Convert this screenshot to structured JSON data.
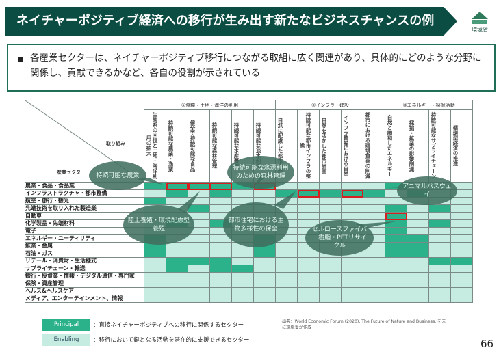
{
  "banner": {
    "title": "ネイチャーポジティブ経済への移行が生み出す新たなビジネスチャンスの例"
  },
  "logo": {
    "text": "環境省"
  },
  "bullet": {
    "text": "各産業セクターは、ネイチャーポジティブ移行につながる取組に広く関連があり、具体的にどのような分野に関係し、貢献できるかなど、各自の役割が示されている"
  },
  "matrix": {
    "corner_top": "取り組み",
    "corner_left": "産業セクタ",
    "groups": [
      {
        "label": "①食糧・土地・海洋の利用",
        "span": 6
      },
      {
        "label": "②インフラ・建設",
        "span": 5
      },
      {
        "label": "③エネルギー・採掘活動",
        "span": 4
      }
    ],
    "columns": [
      "生態系の回復と土地・海洋利用の拡大",
      "持続可能な農業・漁業",
      "健全で持続可能な食品",
      "持続可能な森林管理",
      "持続可能な水産養殖",
      "持続可能な淡水利用",
      "自然に配慮した都市空間",
      "持続可能な都市インフラの整備",
      "自然を活かした都市計画",
      "インフラ整備における自然",
      "都市における環境負荷の削減",
      "自然と調和したエネルギー",
      "採掘・鉱業の影響削減",
      "持続可能なサプライチェーン",
      "循環型経済の推進"
    ],
    "rows": [
      {
        "label": "農業・食品・食品業",
        "cells": "PPPPPPEEEEEPEEE"
      },
      {
        "label": "インフラストラクチャ・都市整備",
        "cells": "EPEPEEPPPPPEPEE"
      },
      {
        "label": "航空・旅行・観光",
        "cells": "PEEEEEEEEEEEEEE"
      },
      {
        "label": "先端技術を取り入れた製造業",
        "cells": "EEPEEEEEEEEPEPE"
      },
      {
        "label": "自動車",
        "cells": "EEEEEEEEEEEPEEE"
      },
      {
        "label": "化学製品・先端材料",
        "cells": "EPEPEEEEEEEPEPE"
      },
      {
        "label": "電子",
        "cells": "EEEEEEEEEEEPEEE"
      },
      {
        "label": "エネルギー・ユーティリティ",
        "cells": "PEEEEPEEEEEPPEE"
      },
      {
        "label": "鉱業・金属",
        "cells": "PEEEEPEEEEEPPEE"
      },
      {
        "label": "石油・ガス",
        "cells": "PEEEEPEEEEEPPEE"
      },
      {
        "label": "リテール・消費財・生活様式",
        "cells": "EPPPEEEEEEEEEPP"
      },
      {
        "label": "サプライチェーン・輸送",
        "cells": "EPEPPEEEEEEEEEE"
      },
      {
        "label": "銀行・投資業・情報・デジタル通信・専門家",
        "cells": "EEEEEEEEEEEEEEE"
      },
      {
        "label": "保険・資産管理",
        "cells": "EEEEEEEEEEEEEEE"
      },
      {
        "label": "ヘルス&ヘルスケア",
        "cells": "EEEEEEEEEEEEEEE"
      },
      {
        "label": "メディア、エンターテインメント、情報",
        "cells": "EEEEEEEEEEEEEEE"
      }
    ],
    "highlights": [
      [
        0,
        1
      ],
      [
        0,
        2
      ],
      [
        0,
        3
      ],
      [
        0,
        5
      ],
      [
        1,
        7
      ],
      [
        1,
        9
      ],
      [
        4,
        11
      ]
    ]
  },
  "bubbles": {
    "b1": "持続可能な農業",
    "b2": "持続可能な水源利用のための森林管理",
    "b3": "アニマルパスウェイ",
    "b4": "陸上養殖・環境配慮型養殖",
    "b5": "都市住宅における生物多様性の保全",
    "b6": "セルロースファイバー樹脂・PETリサイクル"
  },
  "legend": {
    "principal_label": "Principal",
    "principal_text": "：直接ネイチャーポジティブへの移行に関係するセクター",
    "enabling_label": "Enabling",
    "enabling_text": "：移行において鍵となる活動を潜在的に支援できるセクター"
  },
  "source": "出典：World Economic Forum (2020). The Future of Nature and Business. を元に環境省が作成",
  "page_number": "66",
  "colors": {
    "principal": "#2bb28a",
    "enabling": "#c6ece2",
    "banner": "#0c4d43",
    "highlight": "#d62020"
  }
}
